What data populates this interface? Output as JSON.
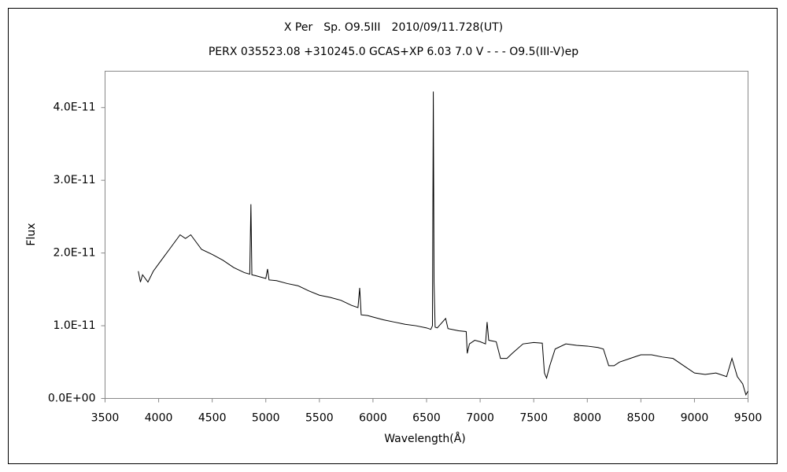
{
  "chart_data": {
    "type": "line",
    "title": "X Per　Sp. O9.5III　2010/09/11.728(UT)",
    "subtitle": "PERX 035523.08 +310245.0 GCAS+XP 6.03 7.0 V - - - O9.5(III-V)ep",
    "x_label": "Wavelength(Å)",
    "y_label": "Flux",
    "xlim": [
      3500,
      9500
    ],
    "xticks": [
      3500,
      4000,
      4500,
      5000,
      5500,
      6000,
      6500,
      7000,
      7500,
      8000,
      8500,
      9000,
      9500
    ],
    "ylim": [
      0,
      4.5e-11
    ],
    "yticks": [
      {
        "value": 0,
        "label": "0.0E+00"
      },
      {
        "value": 1e-11,
        "label": "1.0E-11"
      },
      {
        "value": 2e-11,
        "label": "2.0E-11"
      },
      {
        "value": 3e-11,
        "label": "3.0E-11"
      },
      {
        "value": 4e-11,
        "label": "4.0E-11"
      }
    ],
    "grid": false,
    "x": [
      3810,
      3830,
      3850,
      3900,
      3950,
      4000,
      4050,
      4100,
      4150,
      4200,
      4250,
      4300,
      4350,
      4400,
      4500,
      4600,
      4700,
      4800,
      4850,
      4861,
      4870,
      4900,
      5000,
      5016,
      5030,
      5100,
      5200,
      5300,
      5400,
      5500,
      5600,
      5700,
      5800,
      5860,
      5876,
      5890,
      5950,
      6000,
      6100,
      6200,
      6300,
      6400,
      6500,
      6540,
      6555,
      6563,
      6570,
      6580,
      6600,
      6678,
      6700,
      6800,
      6870,
      6880,
      6900,
      6950,
      7000,
      7050,
      7065,
      7080,
      7150,
      7190,
      7250,
      7300,
      7400,
      7500,
      7580,
      7600,
      7620,
      7650,
      7700,
      7800,
      7900,
      8000,
      8100,
      8150,
      8200,
      8250,
      8300,
      8400,
      8500,
      8600,
      8700,
      8800,
      8900,
      9000,
      9100,
      9200,
      9300,
      9350,
      9400,
      9450,
      9480,
      9500
    ],
    "series": [
      {
        "name": "Flux",
        "color": "#000000",
        "values": [
          1.75e-11,
          1.6e-11,
          1.7e-11,
          1.6e-11,
          1.75e-11,
          1.85e-11,
          1.95e-11,
          2.05e-11,
          2.15e-11,
          2.25e-11,
          2.2e-11,
          2.25e-11,
          2.15e-11,
          2.05e-11,
          1.98e-11,
          1.9e-11,
          1.8e-11,
          1.73e-11,
          1.71e-11,
          2.67e-11,
          1.7e-11,
          1.69e-11,
          1.65e-11,
          1.78e-11,
          1.63e-11,
          1.62e-11,
          1.58e-11,
          1.55e-11,
          1.48e-11,
          1.42e-11,
          1.39e-11,
          1.35e-11,
          1.28e-11,
          1.25e-11,
          1.52e-11,
          1.15e-11,
          1.14e-11,
          1.12e-11,
          1.08e-11,
          1.05e-11,
          1.02e-11,
          1e-11,
          9.7e-12,
          9.5e-12,
          1e-11,
          4.22e-11,
          1.6e-11,
          9.8e-12,
          9.7e-12,
          1.1e-11,
          9.6e-12,
          9.3e-12,
          9.2e-12,
          6.2e-12,
          7.5e-12,
          8e-12,
          7.8e-12,
          7.5e-12,
          1.05e-11,
          8e-12,
          7.8e-12,
          5.5e-12,
          5.5e-12,
          6.2e-12,
          7.5e-12,
          7.7e-12,
          7.6e-12,
          3.5e-12,
          2.8e-12,
          4.5e-12,
          6.8e-12,
          7.5e-12,
          7.3e-12,
          7.2e-12,
          7e-12,
          6.8e-12,
          4.5e-12,
          4.5e-12,
          5e-12,
          5.5e-12,
          6e-12,
          6e-12,
          5.7e-12,
          5.5e-12,
          4.5e-12,
          3.5e-12,
          3.3e-12,
          3.5e-12,
          3e-12,
          5.5e-12,
          3e-12,
          2e-12,
          5e-13,
          1e-12
        ]
      }
    ]
  }
}
